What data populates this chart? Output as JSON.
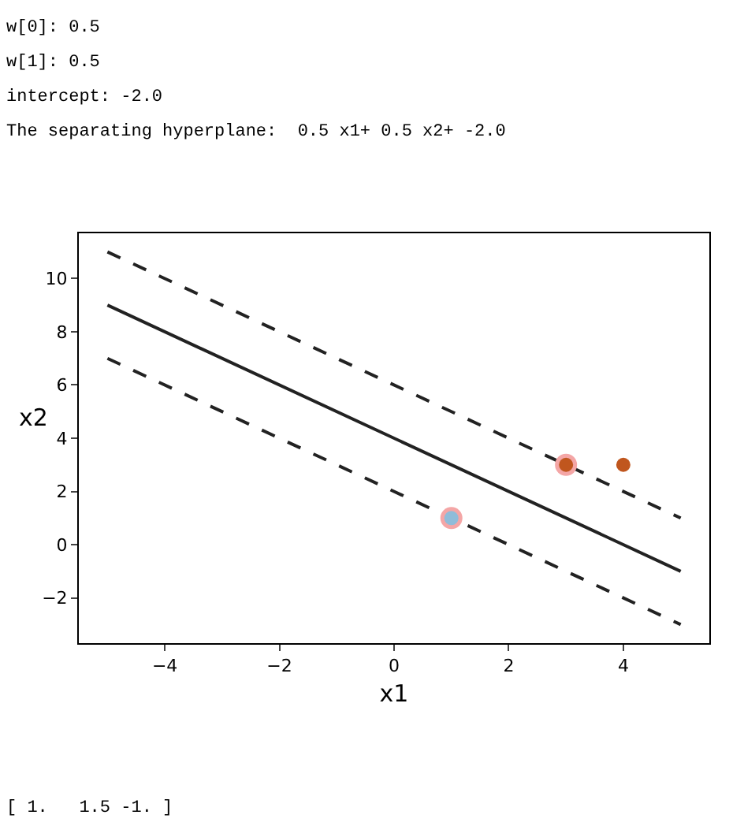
{
  "chart_data": {
    "type": "scatter",
    "xlabel": "x1",
    "ylabel": "x2",
    "xlim": [
      -5.5,
      5.5
    ],
    "ylim": [
      -3.7,
      11.7
    ],
    "xticks": [
      -4,
      -2,
      0,
      2,
      4
    ],
    "yticks": [
      -2,
      0,
      2,
      4,
      6,
      8,
      10
    ],
    "series": [
      {
        "type": "line",
        "x": [
          -5,
          5
        ],
        "values": [
          9,
          -1
        ],
        "color": "#222222",
        "line_style": "solid"
      },
      {
        "type": "line",
        "x": [
          -5,
          5
        ],
        "values": [
          11,
          1
        ],
        "color": "#222222",
        "line_style": "dashed"
      },
      {
        "type": "line",
        "x": [
          -5,
          5
        ],
        "values": [
          7,
          -3
        ],
        "color": "#222222",
        "line_style": "dashed"
      },
      {
        "x": [
          1,
          3
        ],
        "values": [
          1,
          3
        ],
        "color": "#f4a6a6",
        "marker": "circle"
      },
      {
        "x": [
          1,
          3,
          4
        ],
        "values": [
          1,
          3,
          3
        ],
        "colors": [
          "#8fbcd9",
          "#c0561e",
          "#c0561e"
        ],
        "marker": "circle"
      }
    ],
    "annotations": [
      "w[0]: 0.5",
      "w[1]: 0.5",
      "intercept: -2.0",
      "The separating hyperplane:  0.5 x1+ 0.5 x2+ -2.0",
      "[ 1.   1.5 -1. ]"
    ]
  }
}
